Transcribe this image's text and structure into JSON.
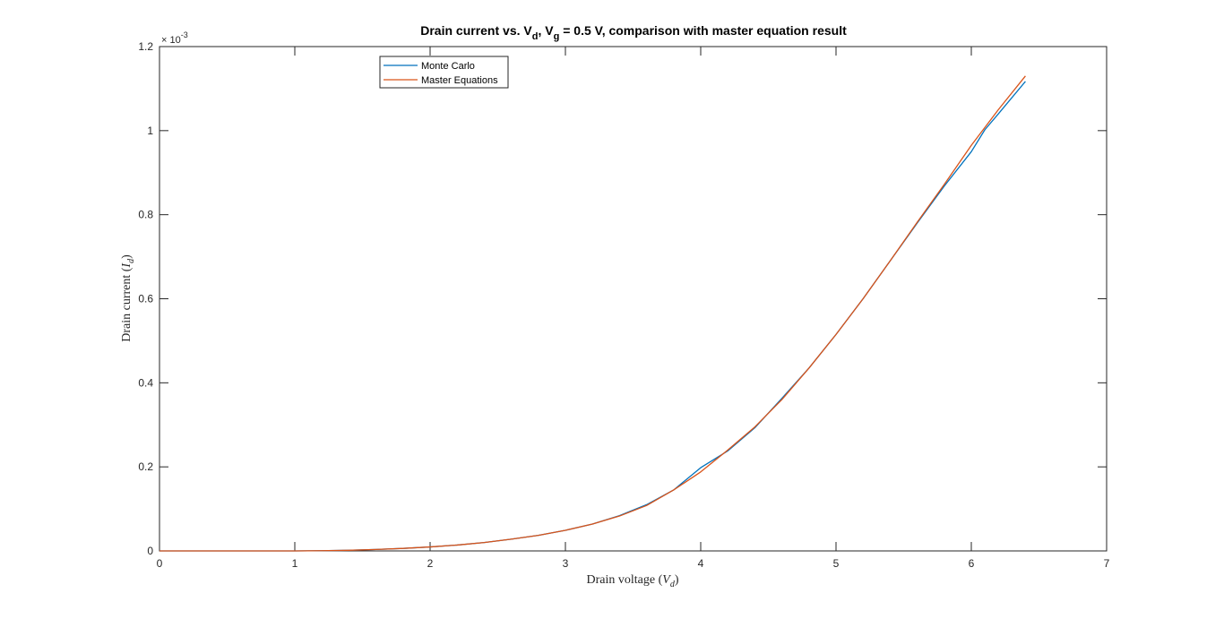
{
  "chart_data": {
    "type": "line",
    "title": {
      "prefix": "Drain current vs. V",
      "sub1": "d",
      "middle": ", V",
      "sub2": "g",
      "suffix": " = 0.5 V, comparison with master equation result"
    },
    "xlabel": {
      "text": "Drain voltage (",
      "var": "V",
      "sub": "d",
      "close": ")"
    },
    "ylabel": {
      "text": "Drain current (",
      "var": "I",
      "sub": "d",
      "close": ")"
    },
    "xlim": [
      0,
      7
    ],
    "ylim": [
      0,
      0.0012
    ],
    "xticks": [
      0,
      1,
      2,
      3,
      4,
      5,
      6,
      7
    ],
    "xtick_labels": [
      "0",
      "1",
      "2",
      "3",
      "4",
      "5",
      "6",
      "7"
    ],
    "yticks": [
      0,
      0.0002,
      0.0004,
      0.0006,
      0.0008,
      0.001,
      0.0012
    ],
    "ytick_labels": [
      "0",
      "0.2",
      "0.4",
      "0.6",
      "0.8",
      "1",
      "1.2"
    ],
    "exponent_label": {
      "base": "× 10",
      "power": "-3"
    },
    "grid": false,
    "legend_position": "top-left",
    "series": [
      {
        "name": "Monte Carlo",
        "color": "#0072BD",
        "x": [
          0,
          0.2,
          0.4,
          0.6,
          0.8,
          1.0,
          1.2,
          1.4,
          1.6,
          1.8,
          2.0,
          2.2,
          2.4,
          2.6,
          2.8,
          3.0,
          3.2,
          3.4,
          3.6,
          3.8,
          4.0,
          4.2,
          4.4,
          4.6,
          4.8,
          5.0,
          5.2,
          5.4,
          5.6,
          5.8,
          6.0,
          6.1,
          6.2,
          6.4
        ],
        "y": [
          0,
          0,
          0,
          0,
          0,
          0,
          5e-07,
          1.5e-06,
          3.5e-06,
          6e-06,
          9.5e-06,
          1.4e-05,
          2e-05,
          2.8e-05,
          3.7e-05,
          4.9e-05,
          6.4e-05,
          8.4e-05,
          0.00011,
          0.000145,
          0.000198,
          0.000238,
          0.000293,
          0.000363,
          0.000435,
          0.000515,
          0.0006,
          0.00069,
          0.00078,
          0.000868,
          0.00095,
          0.001002,
          0.00104,
          0.001117
        ]
      },
      {
        "name": "Master Equations",
        "color": "#D95319",
        "x": [
          0,
          0.2,
          0.4,
          0.6,
          0.8,
          1.0,
          1.2,
          1.4,
          1.6,
          1.8,
          2.0,
          2.2,
          2.4,
          2.6,
          2.8,
          3.0,
          3.2,
          3.4,
          3.6,
          3.8,
          4.0,
          4.2,
          4.4,
          4.6,
          4.8,
          5.0,
          5.2,
          5.4,
          5.6,
          5.8,
          6.0,
          6.2,
          6.4
        ],
        "y": [
          0,
          0,
          0,
          0,
          0,
          0,
          5e-07,
          1.5e-06,
          3.5e-06,
          6e-06,
          9.5e-06,
          1.4e-05,
          2e-05,
          2.8e-05,
          3.7e-05,
          4.9e-05,
          6.4e-05,
          8.3e-05,
          0.000108,
          0.000145,
          0.000188,
          0.00024,
          0.000295,
          0.00036,
          0.000435,
          0.000515,
          0.0006,
          0.00069,
          0.000782,
          0.000872,
          0.000965,
          0.00105,
          0.00113
        ]
      }
    ]
  }
}
